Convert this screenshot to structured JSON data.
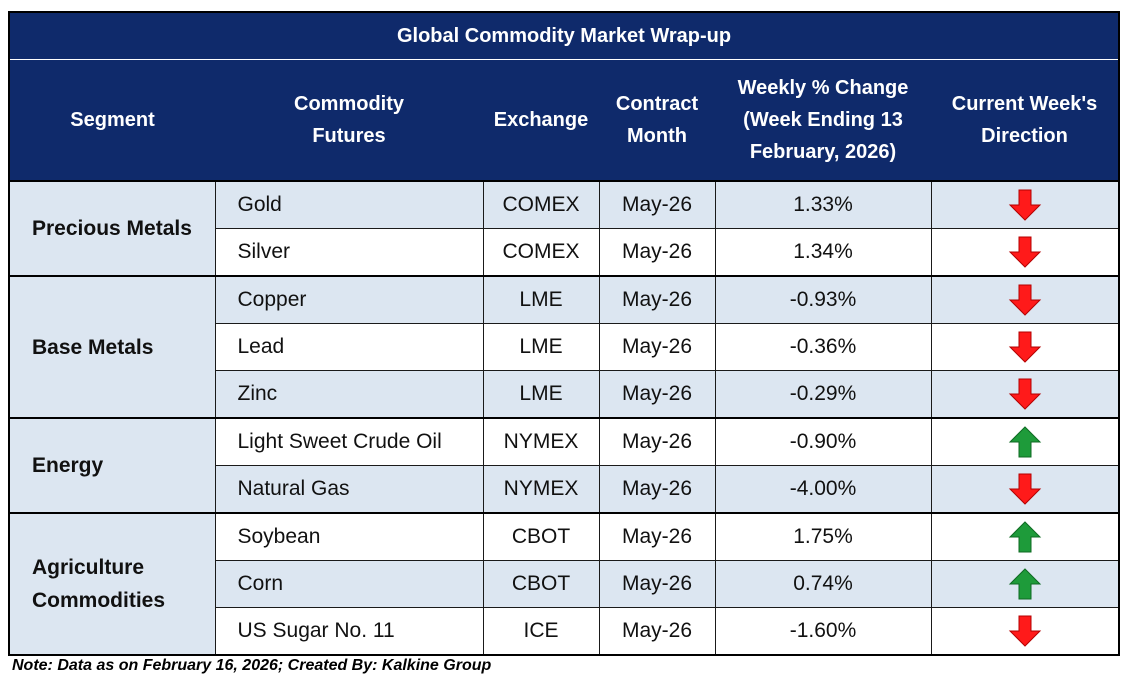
{
  "title": "Global Commodity Market Wrap-up",
  "headers": {
    "segment": "Segment",
    "commodity_line1": "Commodity",
    "commodity_line2": "Futures",
    "exchange": "Exchange",
    "contract_line1": "Contract",
    "contract_line2": "Month",
    "change_line1": "Weekly % Change",
    "change_line2": "(Week Ending  13",
    "change_line3": "February, 2026)",
    "direction_line1": "Current Week's",
    "direction_line2": "Direction"
  },
  "segments": [
    {
      "line1": "Precious Metals",
      "line2": ""
    },
    {
      "line1": "Base Metals",
      "line2": ""
    },
    {
      "line1": "Energy",
      "line2": ""
    },
    {
      "line1": "Agriculture",
      "line2": "Commodities"
    }
  ],
  "rows": [
    {
      "commodity": "Gold",
      "exchange": "COMEX",
      "month": "May-26",
      "change": "1.33%",
      "direction": "down"
    },
    {
      "commodity": "Silver",
      "exchange": "COMEX",
      "month": "May-26",
      "change": "1.34%",
      "direction": "down"
    },
    {
      "commodity": "Copper",
      "exchange": "LME",
      "month": "May-26",
      "change": "-0.93%",
      "direction": "down"
    },
    {
      "commodity": "Lead",
      "exchange": "LME",
      "month": "May-26",
      "change": "-0.36%",
      "direction": "down"
    },
    {
      "commodity": "Zinc",
      "exchange": "LME",
      "month": "May-26",
      "change": "-0.29%",
      "direction": "down"
    },
    {
      "commodity": "Light Sweet Crude Oil",
      "exchange": "NYMEX",
      "month": "May-26",
      "change": "-0.90%",
      "direction": "up"
    },
    {
      "commodity": "Natural Gas",
      "exchange": "NYMEX",
      "month": "May-26",
      "change": "-4.00%",
      "direction": "down"
    },
    {
      "commodity": "Soybean",
      "exchange": "CBOT",
      "month": "May-26",
      "change": "1.75%",
      "direction": "up"
    },
    {
      "commodity": "Corn",
      "exchange": "CBOT",
      "month": "May-26",
      "change": "0.74%",
      "direction": "up"
    },
    {
      "commodity": "US Sugar No. 11",
      "exchange": "ICE",
      "month": "May-26",
      "change": "-1.60%",
      "direction": "down"
    }
  ],
  "colors": {
    "header_bg": "#0f2a6b",
    "row_shade": "#dce6f1",
    "arrow_up": "#1e9b3a",
    "arrow_down": "#ff1a1a"
  },
  "icons": {
    "up": "arrow-up-icon",
    "down": "arrow-down-icon"
  },
  "note": "Note: Data as on February 16, 2026; Created By: Kalkine Group"
}
